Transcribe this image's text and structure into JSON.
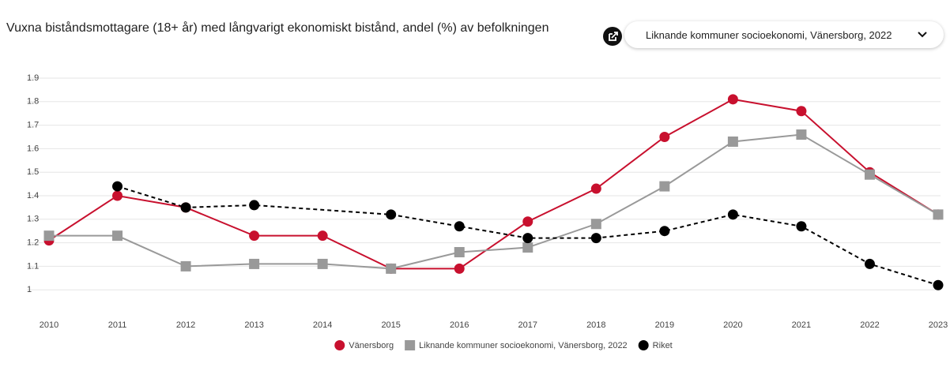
{
  "chart_data": {
    "type": "line",
    "title": "Vuxna biståndsmottagare (18+ år) med långvarigt ekonomiskt bistånd, andel (%) av befolkningen",
    "selector": "Liknande kommuner socioekonomi, Vänersborg, 2022",
    "categories": [
      "2010",
      "2011",
      "2012",
      "2013",
      "2014",
      "2015",
      "2016",
      "2017",
      "2018",
      "2019",
      "2020",
      "2021",
      "2022",
      "2023"
    ],
    "series": [
      {
        "name": "Vänersborg",
        "color": "#c8102e",
        "marker": "circle",
        "dashed": false,
        "values": [
          1.21,
          1.4,
          1.35,
          1.23,
          1.23,
          1.09,
          1.09,
          1.29,
          1.43,
          1.65,
          1.81,
          1.76,
          1.5,
          1.32
        ]
      },
      {
        "name": "Liknande kommuner socioekonomi, Vänersborg, 2022",
        "color": "#999999",
        "marker": "square",
        "dashed": false,
        "values": [
          1.23,
          1.23,
          1.1,
          1.11,
          1.11,
          1.09,
          1.16,
          1.18,
          1.28,
          1.44,
          1.63,
          1.66,
          1.49,
          1.32
        ]
      },
      {
        "name": "Riket",
        "color": "#000000",
        "marker": "circle",
        "dashed": true,
        "values": [
          null,
          1.44,
          1.35,
          1.36,
          null,
          1.32,
          1.27,
          1.22,
          1.22,
          1.25,
          1.32,
          1.27,
          1.11,
          1.02
        ]
      }
    ],
    "ylim": [
      0.9,
      1.9
    ],
    "yticks": [
      1,
      1.1,
      1.2,
      1.3,
      1.4,
      1.5,
      1.6,
      1.7,
      1.8,
      1.9
    ],
    "grid": true,
    "legend": "bottom"
  }
}
